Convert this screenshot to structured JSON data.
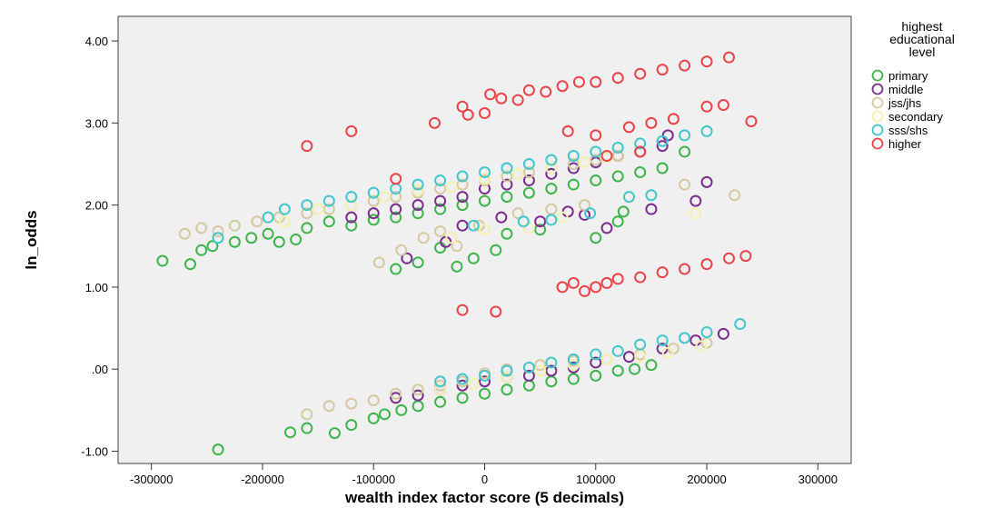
{
  "chart_data": {
    "type": "scatter",
    "xlabel": "wealth index factor score (5 decimals)",
    "ylabel": "ln_odds",
    "xlim": [
      -330000,
      330000
    ],
    "ylim": [
      -1.15,
      4.3
    ],
    "xticks": [
      -300000,
      -200000,
      -100000,
      0,
      100000,
      200000,
      300000
    ],
    "xtick_labels": [
      "-300000",
      "-200000",
      "-100000",
      "0",
      "100000",
      "200000",
      "300000"
    ],
    "yticks": [
      -1.0,
      0.0,
      1.0,
      2.0,
      3.0,
      4.0
    ],
    "ytick_labels": [
      "-1.00",
      ".00",
      "1.00",
      "2.00",
      "3.00",
      "4.00"
    ],
    "grid": false,
    "marker": "open-circle",
    "legend": {
      "placement": "right",
      "title": [
        "highest",
        "educational",
        "level"
      ]
    },
    "series": [
      {
        "name": "primary",
        "color": "#3cb44b",
        "points": [
          [
            -290000,
            1.32
          ],
          [
            -265000,
            1.28
          ],
          [
            -255000,
            1.45
          ],
          [
            -245000,
            1.5
          ],
          [
            -225000,
            1.55
          ],
          [
            -210000,
            1.6
          ],
          [
            -195000,
            1.65
          ],
          [
            -185000,
            1.55
          ],
          [
            -170000,
            1.58
          ],
          [
            -160000,
            1.72
          ],
          [
            -140000,
            1.8
          ],
          [
            -120000,
            1.75
          ],
          [
            -100000,
            1.82
          ],
          [
            -80000,
            1.85
          ],
          [
            -60000,
            1.9
          ],
          [
            -40000,
            1.95
          ],
          [
            -20000,
            2.0
          ],
          [
            0,
            2.05
          ],
          [
            20000,
            2.1
          ],
          [
            40000,
            2.15
          ],
          [
            60000,
            2.2
          ],
          [
            80000,
            2.25
          ],
          [
            100000,
            2.3
          ],
          [
            120000,
            2.35
          ],
          [
            140000,
            2.4
          ],
          [
            160000,
            2.45
          ],
          [
            180000,
            2.65
          ],
          [
            -80000,
            1.22
          ],
          [
            -60000,
            1.3
          ],
          [
            -40000,
            1.48
          ],
          [
            -25000,
            1.25
          ],
          [
            -10000,
            1.35
          ],
          [
            10000,
            1.45
          ],
          [
            20000,
            1.65
          ],
          [
            50000,
            1.7
          ],
          [
            100000,
            1.6
          ],
          [
            120000,
            1.8
          ],
          [
            125000,
            1.92
          ],
          [
            -240000,
            -0.98
          ],
          [
            -175000,
            -0.77
          ],
          [
            -160000,
            -0.72
          ],
          [
            -135000,
            -0.78
          ],
          [
            -120000,
            -0.68
          ],
          [
            -100000,
            -0.6
          ],
          [
            -90000,
            -0.55
          ],
          [
            -75000,
            -0.5
          ],
          [
            -60000,
            -0.45
          ],
          [
            -40000,
            -0.4
          ],
          [
            -20000,
            -0.35
          ],
          [
            0,
            -0.3
          ],
          [
            20000,
            -0.25
          ],
          [
            40000,
            -0.2
          ],
          [
            60000,
            -0.15
          ],
          [
            80000,
            -0.12
          ],
          [
            100000,
            -0.08
          ],
          [
            120000,
            -0.02
          ],
          [
            135000,
            0.0
          ],
          [
            150000,
            0.05
          ]
        ]
      },
      {
        "name": "middle",
        "color": "#7b2d8e",
        "points": [
          [
            -120000,
            1.85
          ],
          [
            -100000,
            1.9
          ],
          [
            -80000,
            1.95
          ],
          [
            -60000,
            2.0
          ],
          [
            -40000,
            2.05
          ],
          [
            -20000,
            2.1
          ],
          [
            0,
            2.2
          ],
          [
            20000,
            2.25
          ],
          [
            40000,
            2.3
          ],
          [
            60000,
            2.38
          ],
          [
            80000,
            2.45
          ],
          [
            100000,
            2.52
          ],
          [
            120000,
            2.6
          ],
          [
            140000,
            2.65
          ],
          [
            160000,
            2.72
          ],
          [
            165000,
            2.85
          ],
          [
            -70000,
            1.35
          ],
          [
            -35000,
            1.55
          ],
          [
            -20000,
            1.75
          ],
          [
            15000,
            1.85
          ],
          [
            50000,
            1.8
          ],
          [
            75000,
            1.92
          ],
          [
            90000,
            1.88
          ],
          [
            110000,
            1.72
          ],
          [
            150000,
            1.95
          ],
          [
            190000,
            2.05
          ],
          [
            200000,
            2.28
          ],
          [
            -80000,
            -0.35
          ],
          [
            -60000,
            -0.32
          ],
          [
            -40000,
            -0.25
          ],
          [
            -20000,
            -0.2
          ],
          [
            0,
            -0.15
          ],
          [
            20000,
            -0.1
          ],
          [
            40000,
            -0.08
          ],
          [
            60000,
            -0.02
          ],
          [
            80000,
            0.02
          ],
          [
            100000,
            0.08
          ],
          [
            130000,
            0.15
          ],
          [
            160000,
            0.25
          ],
          [
            190000,
            0.35
          ],
          [
            215000,
            0.43
          ]
        ]
      },
      {
        "name": "jss/jhs",
        "color": "#d4c9a0",
        "points": [
          [
            -270000,
            1.65
          ],
          [
            -255000,
            1.72
          ],
          [
            -240000,
            1.68
          ],
          [
            -225000,
            1.75
          ],
          [
            -205000,
            1.8
          ],
          [
            -185000,
            1.85
          ],
          [
            -160000,
            1.9
          ],
          [
            -140000,
            1.95
          ],
          [
            -120000,
            2.0
          ],
          [
            -100000,
            2.05
          ],
          [
            -80000,
            2.1
          ],
          [
            -60000,
            2.15
          ],
          [
            -40000,
            2.2
          ],
          [
            -20000,
            2.25
          ],
          [
            0,
            2.3
          ],
          [
            20000,
            2.35
          ],
          [
            40000,
            2.4
          ],
          [
            60000,
            2.45
          ],
          [
            80000,
            2.5
          ],
          [
            100000,
            2.55
          ],
          [
            120000,
            2.6
          ],
          [
            -95000,
            1.3
          ],
          [
            -75000,
            1.45
          ],
          [
            -55000,
            1.6
          ],
          [
            -40000,
            1.68
          ],
          [
            -25000,
            1.5
          ],
          [
            -5000,
            1.75
          ],
          [
            30000,
            1.9
          ],
          [
            60000,
            1.95
          ],
          [
            90000,
            2.0
          ],
          [
            180000,
            2.25
          ],
          [
            225000,
            2.12
          ],
          [
            -160000,
            -0.55
          ],
          [
            -140000,
            -0.45
          ],
          [
            -120000,
            -0.42
          ],
          [
            -100000,
            -0.38
          ],
          [
            -80000,
            -0.3
          ],
          [
            -60000,
            -0.25
          ],
          [
            -40000,
            -0.2
          ],
          [
            -20000,
            -0.15
          ],
          [
            0,
            -0.05
          ],
          [
            20000,
            0.0
          ],
          [
            50000,
            0.05
          ],
          [
            80000,
            0.1
          ],
          [
            110000,
            0.12
          ],
          [
            140000,
            0.18
          ],
          [
            170000,
            0.25
          ],
          [
            200000,
            0.32
          ]
        ]
      },
      {
        "name": "secondary",
        "color": "#f3f0b0",
        "points": [
          [
            -180000,
            1.8
          ],
          [
            -150000,
            1.95
          ],
          [
            -120000,
            2.0
          ],
          [
            -90000,
            2.1
          ],
          [
            -60000,
            2.18
          ],
          [
            -30000,
            2.22
          ],
          [
            0,
            2.32
          ],
          [
            30000,
            2.38
          ],
          [
            60000,
            2.45
          ],
          [
            90000,
            2.52
          ],
          [
            110000,
            2.58
          ],
          [
            -30000,
            1.6
          ],
          [
            0,
            1.7
          ],
          [
            40000,
            1.72
          ],
          [
            70000,
            1.85
          ],
          [
            190000,
            1.9
          ],
          [
            -40000,
            -0.25
          ],
          [
            -10000,
            -0.18
          ],
          [
            20000,
            -0.1
          ],
          [
            50000,
            -0.02
          ],
          [
            80000,
            0.05
          ],
          [
            110000,
            0.12
          ],
          [
            140000,
            0.15
          ],
          [
            165000,
            0.2
          ],
          [
            195000,
            0.28
          ]
        ]
      },
      {
        "name": "sss/shs",
        "color": "#43c6c9",
        "points": [
          [
            -240000,
            1.6
          ],
          [
            -195000,
            1.85
          ],
          [
            -180000,
            1.95
          ],
          [
            -160000,
            2.0
          ],
          [
            -140000,
            2.05
          ],
          [
            -120000,
            2.1
          ],
          [
            -100000,
            2.15
          ],
          [
            -80000,
            2.2
          ],
          [
            -60000,
            2.25
          ],
          [
            -40000,
            2.3
          ],
          [
            -20000,
            2.35
          ],
          [
            0,
            2.4
          ],
          [
            20000,
            2.45
          ],
          [
            40000,
            2.5
          ],
          [
            60000,
            2.55
          ],
          [
            80000,
            2.6
          ],
          [
            100000,
            2.65
          ],
          [
            120000,
            2.7
          ],
          [
            140000,
            2.75
          ],
          [
            160000,
            2.78
          ],
          [
            180000,
            2.85
          ],
          [
            200000,
            2.9
          ],
          [
            -10000,
            1.75
          ],
          [
            35000,
            1.8
          ],
          [
            60000,
            1.82
          ],
          [
            95000,
            1.9
          ],
          [
            130000,
            2.1
          ],
          [
            150000,
            2.12
          ],
          [
            -40000,
            -0.15
          ],
          [
            -20000,
            -0.12
          ],
          [
            0,
            -0.08
          ],
          [
            20000,
            -0.02
          ],
          [
            40000,
            0.02
          ],
          [
            60000,
            0.08
          ],
          [
            80000,
            0.12
          ],
          [
            100000,
            0.18
          ],
          [
            120000,
            0.22
          ],
          [
            140000,
            0.3
          ],
          [
            160000,
            0.35
          ],
          [
            180000,
            0.38
          ],
          [
            200000,
            0.45
          ],
          [
            230000,
            0.55
          ]
        ]
      },
      {
        "name": "higher",
        "color": "#e8434a",
        "points": [
          [
            -160000,
            2.72
          ],
          [
            -120000,
            2.9
          ],
          [
            -80000,
            2.32
          ],
          [
            -45000,
            3.0
          ],
          [
            -20000,
            3.2
          ],
          [
            -15000,
            3.1
          ],
          [
            0,
            3.12
          ],
          [
            5000,
            3.35
          ],
          [
            15000,
            3.3
          ],
          [
            30000,
            3.28
          ],
          [
            40000,
            3.4
          ],
          [
            55000,
            3.38
          ],
          [
            70000,
            3.45
          ],
          [
            85000,
            3.5
          ],
          [
            100000,
            3.5
          ],
          [
            120000,
            3.55
          ],
          [
            140000,
            3.6
          ],
          [
            160000,
            3.65
          ],
          [
            180000,
            3.7
          ],
          [
            200000,
            3.75
          ],
          [
            220000,
            3.8
          ],
          [
            75000,
            2.9
          ],
          [
            100000,
            2.85
          ],
          [
            130000,
            2.95
          ],
          [
            150000,
            3.0
          ],
          [
            170000,
            3.05
          ],
          [
            200000,
            3.2
          ],
          [
            215000,
            3.22
          ],
          [
            240000,
            3.02
          ],
          [
            110000,
            2.6
          ],
          [
            140000,
            2.65
          ],
          [
            -20000,
            0.72
          ],
          [
            10000,
            0.7
          ],
          [
            70000,
            1.0
          ],
          [
            80000,
            1.05
          ],
          [
            90000,
            0.95
          ],
          [
            100000,
            1.0
          ],
          [
            110000,
            1.05
          ],
          [
            120000,
            1.1
          ],
          [
            140000,
            1.12
          ],
          [
            160000,
            1.18
          ],
          [
            180000,
            1.22
          ],
          [
            200000,
            1.28
          ],
          [
            220000,
            1.35
          ],
          [
            235000,
            1.38
          ]
        ]
      }
    ]
  }
}
